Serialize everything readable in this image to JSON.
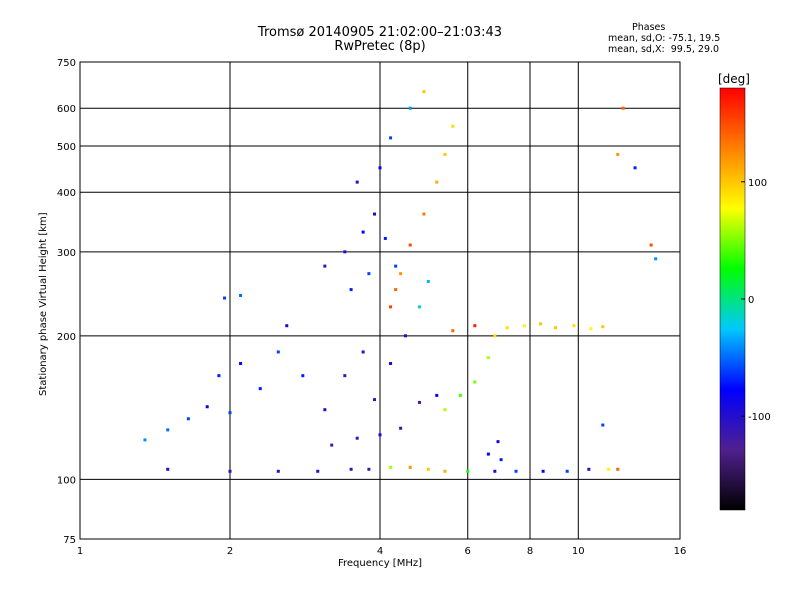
{
  "header": {
    "title": "Tromsø 20140905 21:02:00–21:03:43",
    "subtitle": "RwPretec (8p)",
    "phases_label": "Phases",
    "phase_o": "mean, sd,O: -75.1, 19.5",
    "phase_x": "mean, sd,X:  99.5, 29.0"
  },
  "chart_data": {
    "type": "scatter",
    "xlabel": "Frequency [MHz]",
    "ylabel": "Stationary phase Virtual Height [km]",
    "x_scale": "log",
    "y_scale": "log",
    "xlim": [
      1,
      16
    ],
    "ylim": [
      75,
      750
    ],
    "x_ticks": [
      1,
      2,
      4,
      6,
      8,
      10,
      16
    ],
    "y_ticks": [
      75,
      100,
      200,
      300,
      400,
      500,
      600,
      750
    ],
    "grid": true,
    "colorbar": {
      "label": "[deg]",
      "range": [
        -180,
        180
      ],
      "ticks": [
        -100,
        0,
        100
      ],
      "colors": [
        "#000000",
        "#50208f",
        "#0000ff",
        "#00c8ff",
        "#00ff00",
        "#ffff00",
        "#ff8000",
        "#ff0000"
      ]
    },
    "series": [
      {
        "values": [
          {
            "x": 1.5,
            "y": 105,
            "phase": -95
          },
          {
            "x": 2.0,
            "y": 104,
            "phase": -100
          },
          {
            "x": 2.5,
            "y": 104,
            "phase": -100
          },
          {
            "x": 3.0,
            "y": 104,
            "phase": -100
          },
          {
            "x": 3.5,
            "y": 105,
            "phase": -110
          },
          {
            "x": 3.8,
            "y": 105,
            "phase": -115
          },
          {
            "x": 4.2,
            "y": 106,
            "phase": 60
          },
          {
            "x": 4.6,
            "y": 106,
            "phase": 120
          },
          {
            "x": 5.0,
            "y": 105,
            "phase": 100
          },
          {
            "x": 5.4,
            "y": 104,
            "phase": 110
          },
          {
            "x": 6.0,
            "y": 104,
            "phase": 30
          },
          {
            "x": 6.8,
            "y": 104,
            "phase": -100
          },
          {
            "x": 7.5,
            "y": 104,
            "phase": -60
          },
          {
            "x": 8.5,
            "y": 104,
            "phase": -80
          },
          {
            "x": 9.5,
            "y": 104,
            "phase": -60
          },
          {
            "x": 10.5,
            "y": 105,
            "phase": -100
          },
          {
            "x": 11.5,
            "y": 105,
            "phase": 80
          },
          {
            "x": 1.35,
            "y": 121,
            "phase": -40
          },
          {
            "x": 1.5,
            "y": 127,
            "phase": -50
          },
          {
            "x": 1.65,
            "y": 134,
            "phase": -60
          },
          {
            "x": 1.8,
            "y": 142,
            "phase": -80
          },
          {
            "x": 1.9,
            "y": 165,
            "phase": -70
          },
          {
            "x": 2.0,
            "y": 138,
            "phase": -60
          },
          {
            "x": 2.1,
            "y": 175,
            "phase": -80
          },
          {
            "x": 2.3,
            "y": 155,
            "phase": -70
          },
          {
            "x": 2.5,
            "y": 185,
            "phase": -60
          },
          {
            "x": 2.6,
            "y": 210,
            "phase": -90
          },
          {
            "x": 2.8,
            "y": 165,
            "phase": -70
          },
          {
            "x": 1.95,
            "y": 240,
            "phase": -60
          },
          {
            "x": 2.1,
            "y": 243,
            "phase": -50
          },
          {
            "x": 3.1,
            "y": 140,
            "phase": -100
          },
          {
            "x": 3.4,
            "y": 165,
            "phase": -110
          },
          {
            "x": 3.7,
            "y": 185,
            "phase": -100
          },
          {
            "x": 3.9,
            "y": 147,
            "phase": -110
          },
          {
            "x": 4.2,
            "y": 175,
            "phase": -90
          },
          {
            "x": 4.5,
            "y": 200,
            "phase": -100
          },
          {
            "x": 4.8,
            "y": 145,
            "phase": -120
          },
          {
            "x": 5.2,
            "y": 150,
            "phase": -80
          },
          {
            "x": 3.2,
            "y": 118,
            "phase": -120
          },
          {
            "x": 3.6,
            "y": 122,
            "phase": -110
          },
          {
            "x": 4.0,
            "y": 124,
            "phase": -90
          },
          {
            "x": 4.4,
            "y": 128,
            "phase": -110
          },
          {
            "x": 3.1,
            "y": 280,
            "phase": -110
          },
          {
            "x": 3.4,
            "y": 300,
            "phase": -100
          },
          {
            "x": 3.7,
            "y": 330,
            "phase": -80
          },
          {
            "x": 3.9,
            "y": 360,
            "phase": -90
          },
          {
            "x": 4.1,
            "y": 320,
            "phase": -70
          },
          {
            "x": 4.3,
            "y": 280,
            "phase": -60
          },
          {
            "x": 3.5,
            "y": 250,
            "phase": -70
          },
          {
            "x": 3.8,
            "y": 270,
            "phase": -60
          },
          {
            "x": 4.2,
            "y": 230,
            "phase": 155
          },
          {
            "x": 4.3,
            "y": 250,
            "phase": 140
          },
          {
            "x": 4.4,
            "y": 270,
            "phase": 120
          },
          {
            "x": 4.6,
            "y": 310,
            "phase": 150
          },
          {
            "x": 4.9,
            "y": 360,
            "phase": 130
          },
          {
            "x": 5.2,
            "y": 420,
            "phase": 110
          },
          {
            "x": 5.4,
            "y": 480,
            "phase": 100
          },
          {
            "x": 5.6,
            "y": 550,
            "phase": 90
          },
          {
            "x": 5.0,
            "y": 260,
            "phase": -30
          },
          {
            "x": 4.8,
            "y": 230,
            "phase": -20
          },
          {
            "x": 4.0,
            "y": 450,
            "phase": -80
          },
          {
            "x": 4.2,
            "y": 520,
            "phase": -60
          },
          {
            "x": 4.6,
            "y": 600,
            "phase": -40
          },
          {
            "x": 4.9,
            "y": 650,
            "phase": 100
          },
          {
            "x": 3.6,
            "y": 420,
            "phase": -100
          },
          {
            "x": 5.4,
            "y": 140,
            "phase": 60
          },
          {
            "x": 5.8,
            "y": 150,
            "phase": 40
          },
          {
            "x": 6.2,
            "y": 160,
            "phase": 50
          },
          {
            "x": 6.6,
            "y": 180,
            "phase": 60
          },
          {
            "x": 6.8,
            "y": 200,
            "phase": 90
          },
          {
            "x": 5.6,
            "y": 205,
            "phase": 140
          },
          {
            "x": 6.2,
            "y": 210,
            "phase": 170
          },
          {
            "x": 7.2,
            "y": 208,
            "phase": 90
          },
          {
            "x": 7.8,
            "y": 210,
            "phase": 80
          },
          {
            "x": 8.4,
            "y": 212,
            "phase": 100
          },
          {
            "x": 9.0,
            "y": 208,
            "phase": 100
          },
          {
            "x": 9.8,
            "y": 210,
            "phase": 90
          },
          {
            "x": 10.6,
            "y": 207,
            "phase": 80
          },
          {
            "x": 11.2,
            "y": 209,
            "phase": 100
          },
          {
            "x": 6.6,
            "y": 113,
            "phase": -80
          },
          {
            "x": 7.0,
            "y": 110,
            "phase": -70
          },
          {
            "x": 6.9,
            "y": 120,
            "phase": -90
          },
          {
            "x": 12.0,
            "y": 480,
            "phase": 120
          },
          {
            "x": 12.3,
            "y": 600,
            "phase": 140
          },
          {
            "x": 13.0,
            "y": 450,
            "phase": -70
          },
          {
            "x": 14.0,
            "y": 310,
            "phase": 150
          },
          {
            "x": 11.2,
            "y": 130,
            "phase": -60
          },
          {
            "x": 12.0,
            "y": 105,
            "phase": 140
          },
          {
            "x": 14.3,
            "y": 290,
            "phase": -40
          }
        ]
      }
    ]
  }
}
